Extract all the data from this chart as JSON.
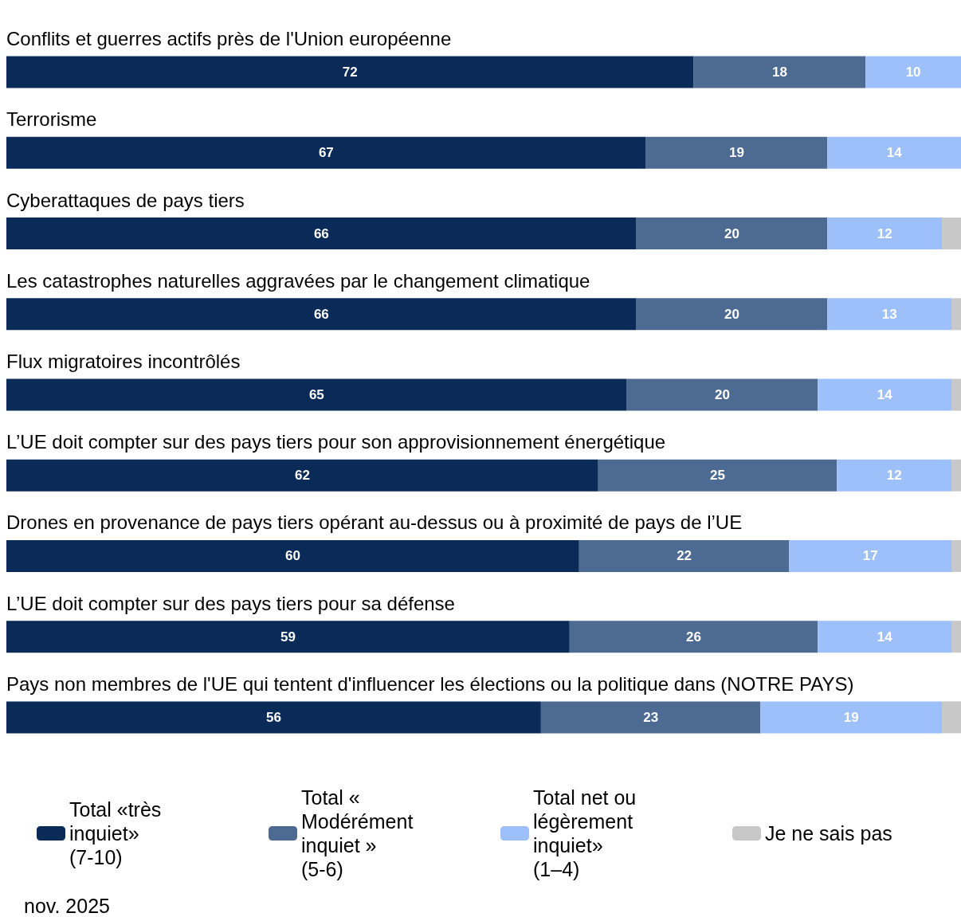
{
  "chart_data": {
    "type": "bar",
    "orientation": "horizontal",
    "stacked": true,
    "tick_labels": false,
    "legend": "bottom",
    "xlim": [
      0,
      100
    ],
    "categories": [
      "Conflits et guerres actifs près de l'Union européenne",
      "Terrorisme",
      "Cyberattaques de pays tiers",
      "Les catastrophes naturelles aggravées par le changement climatique",
      "Flux migratoires incontrôlés",
      "L’UE doit compter sur des pays tiers pour son approvisionnement énergétique",
      "Drones en provenance de pays tiers opérant au-dessus ou à proximité de pays de l’UE",
      "L’UE doit compter sur des pays tiers pour sa défense",
      "Pays non membres de l'UE qui tentent d'influencer les élections ou la politique dans (NOTRE PAYS)"
    ],
    "series": [
      {
        "name": "Total «très inquiet» (7-10)",
        "color": "#0a2b57",
        "values": [
          72,
          67,
          66,
          66,
          65,
          62,
          60,
          59,
          56
        ],
        "value_labels": [
          "72",
          "67",
          "66",
          "66",
          "65",
          "62",
          "60",
          "59",
          "56"
        ]
      },
      {
        "name": "Total « Modérément inquiet » (5-6)",
        "color": "#4d6a92",
        "values": [
          18,
          19,
          20,
          20,
          20,
          25,
          22,
          26,
          23
        ],
        "value_labels": [
          "18",
          "19",
          "20",
          "20",
          "20",
          "25",
          "22",
          "26",
          "23"
        ]
      },
      {
        "name": "Total net ou légèrement inquiet» (1–4)",
        "color": "#9dc0fb",
        "values": [
          10,
          14,
          12,
          13,
          14,
          12,
          17,
          14,
          19
        ],
        "value_labels": [
          "10",
          "14",
          "12",
          "13",
          "14",
          "12",
          "17",
          "14",
          "19"
        ]
      },
      {
        "name": "Je ne sais pas",
        "color": "#c8c8c8",
        "values": [
          0,
          0,
          2,
          1,
          1,
          1,
          1,
          1,
          2
        ],
        "value_labels": [
          null,
          null,
          null,
          null,
          null,
          null,
          null,
          null,
          null
        ]
      }
    ],
    "annotations": [
      "nov. 2025"
    ]
  }
}
